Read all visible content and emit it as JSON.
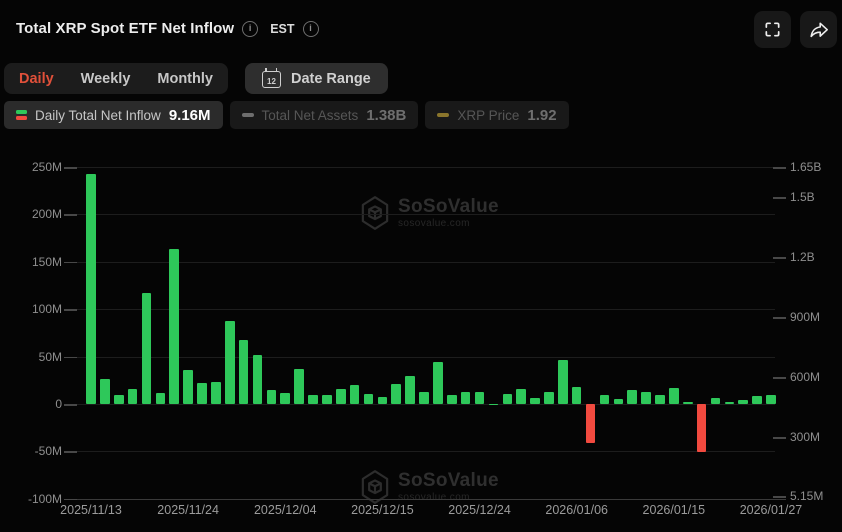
{
  "header": {
    "title": "Total XRP Spot ETF Net Inflow",
    "timezone": "EST"
  },
  "toolbar": {
    "tabs": [
      {
        "label": "Daily",
        "active": true
      },
      {
        "label": "Weekly",
        "active": false
      },
      {
        "label": "Monthly",
        "active": false
      }
    ],
    "calendar_day": "12",
    "date_range_label": "Date Range"
  },
  "legend": {
    "items": [
      {
        "label": "Daily Total Net Inflow",
        "value": "9.16M",
        "active": true,
        "icon": "candle"
      },
      {
        "label": "Total Net Assets",
        "value": "1.38B",
        "active": false,
        "color": "#6e6e6e"
      },
      {
        "label": "XRP Price",
        "value": "1.92",
        "active": false,
        "color": "#8a752c"
      }
    ]
  },
  "watermark": {
    "brand": "SoSoValue",
    "domain": "sosovalue.com"
  },
  "chart_data": {
    "type": "bar",
    "title": "Total XRP Spot ETF Net Inflow (Daily)",
    "unit": "M USD",
    "x": [
      "2025/11/13",
      "2025/11/14",
      "2025/11/17",
      "2025/11/18",
      "2025/11/19",
      "2025/11/20",
      "2025/11/21",
      "2025/11/24",
      "2025/11/25",
      "2025/11/26",
      "2025/11/28",
      "2025/12/01",
      "2025/12/02",
      "2025/12/03",
      "2025/12/04",
      "2025/12/05",
      "2025/12/08",
      "2025/12/09",
      "2025/12/10",
      "2025/12/11",
      "2025/12/12",
      "2025/12/15",
      "2025/12/16",
      "2025/12/17",
      "2025/12/18",
      "2025/12/19",
      "2025/12/22",
      "2025/12/23",
      "2025/12/24",
      "2025/12/26",
      "2025/12/29",
      "2025/12/30",
      "2025/12/31",
      "2026/01/02",
      "2026/01/05",
      "2026/01/06",
      "2026/01/07",
      "2026/01/08",
      "2026/01/09",
      "2026/01/12",
      "2026/01/13",
      "2026/01/14",
      "2026/01/15",
      "2026/01/16",
      "2026/01/20",
      "2026/01/21",
      "2026/01/22",
      "2026/01/23",
      "2026/01/26",
      "2026/01/27"
    ],
    "values": [
      243,
      26,
      10,
      16,
      117,
      12,
      163,
      36,
      22,
      23,
      88,
      67,
      52,
      15,
      12,
      37,
      10,
      10,
      16,
      20,
      11,
      7,
      21,
      30,
      13,
      44,
      10,
      13,
      13,
      0.3,
      11,
      16,
      6,
      13,
      46,
      18,
      -41,
      9,
      5,
      15,
      13,
      10,
      16.6,
      1.7,
      -51,
      6,
      2.5,
      4,
      8,
      9.16
    ],
    "x_tick_labels": [
      "2025/11/13",
      "2025/11/24",
      "2025/12/04",
      "2025/12/15",
      "2025/12/24",
      "2026/01/06",
      "2026/01/15",
      "2026/01/27"
    ],
    "x_tick_indices": [
      0,
      7,
      14,
      21,
      28,
      35,
      42,
      49
    ],
    "left_axis": {
      "ticks": [
        "250M",
        "200M",
        "150M",
        "100M",
        "50M",
        "0",
        "-50M",
        "-100M"
      ],
      "values_M": [
        250,
        200,
        150,
        100,
        50,
        0,
        -50,
        -100
      ]
    },
    "right_axis": {
      "ticks": [
        "1.65B",
        "1.5B",
        "1.2B",
        "900M",
        "600M",
        "300M",
        "5.15M"
      ],
      "values_M": [
        1650,
        1500,
        1200,
        900,
        600,
        300,
        5.15
      ]
    },
    "colors": {
      "positive": "#2ec85a",
      "negative": "#f24a3f"
    },
    "grid": true,
    "legend_position": "top"
  }
}
